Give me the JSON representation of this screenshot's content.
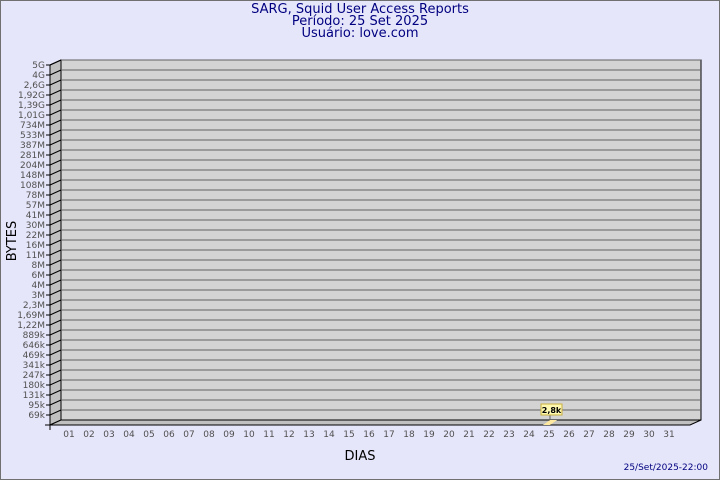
{
  "header": {
    "title": "SARG, Squid User Access Reports",
    "period": "Período: 25 Set 2025",
    "user": "Usuário: love.com"
  },
  "footer": {
    "timestamp": "25/Set/2025-22:00"
  },
  "colors": {
    "background": "#e6e6fa",
    "plot": "#d3d3d3",
    "side": "#c0c0c0",
    "bar": "#ffe9a0",
    "title": "#000080"
  },
  "chart_data": {
    "type": "bar",
    "xlabel": "DIAS",
    "ylabel": "BYTES",
    "yscale": "log",
    "grid": true,
    "categories": [
      "01",
      "02",
      "03",
      "04",
      "05",
      "06",
      "07",
      "08",
      "09",
      "10",
      "11",
      "12",
      "13",
      "14",
      "15",
      "16",
      "17",
      "18",
      "19",
      "20",
      "21",
      "22",
      "23",
      "24",
      "25",
      "26",
      "27",
      "28",
      "29",
      "30",
      "31"
    ],
    "y_tick_labels": [
      "5G",
      "4G",
      "2,6G",
      "1,92G",
      "1,39G",
      "1,01G",
      "734M",
      "533M",
      "387M",
      "281M",
      "204M",
      "148M",
      "108M",
      "78M",
      "57M",
      "41M",
      "30M",
      "22M",
      "16M",
      "11M",
      "8M",
      "6M",
      "4M",
      "3M",
      "2,3M",
      "1,69M",
      "1,22M",
      "889k",
      "646k",
      "469k",
      "341k",
      "247k",
      "180k",
      "131k",
      "95k",
      "69k"
    ],
    "bars": [
      {
        "category": "25",
        "value": 2800,
        "label": "2,8k"
      }
    ]
  }
}
